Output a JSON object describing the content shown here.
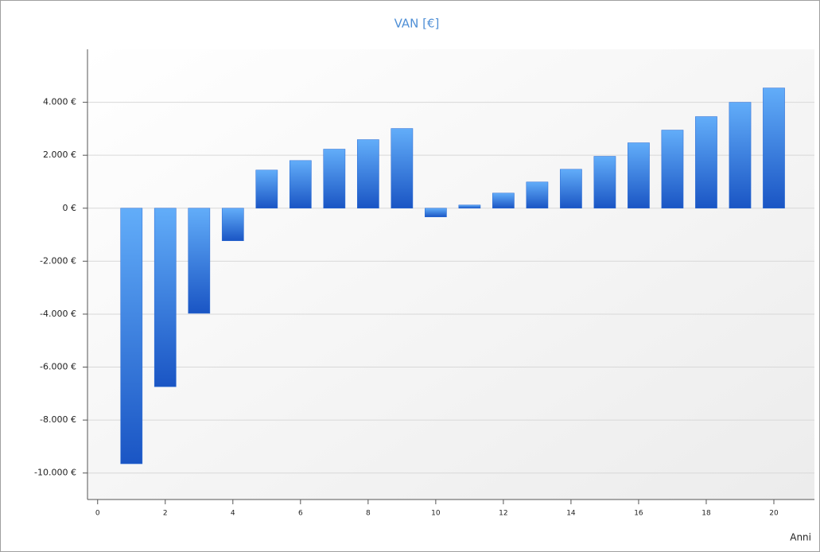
{
  "chart_data": {
    "type": "bar",
    "title": "VAN [€]",
    "x_label": "Anni",
    "x": [
      1,
      2,
      3,
      4,
      5,
      6,
      7,
      8,
      9,
      10,
      11,
      12,
      13,
      14,
      15,
      16,
      17,
      18,
      19,
      20
    ],
    "values": [
      -9650,
      -6740,
      -3970,
      -1230,
      1440,
      1800,
      2230,
      2590,
      3010,
      -330,
      120,
      570,
      990,
      1470,
      1960,
      2470,
      2950,
      3460,
      4000,
      4540
    ],
    "color": "#3f8ce8",
    "xlim": [
      -0.3,
      21.2
    ],
    "xticks": [
      0,
      2,
      4,
      6,
      8,
      10,
      12,
      14,
      16,
      18,
      20
    ],
    "ylim": [
      -11000,
      6000
    ],
    "yticks": [
      {
        "value": -10000,
        "label": "-10.000 €"
      },
      {
        "value": -8000,
        "label": "-8.000 €"
      },
      {
        "value": -6000,
        "label": "-6.000 €"
      },
      {
        "value": -4000,
        "label": "-4.000 €"
      },
      {
        "value": -2000,
        "label": "-2.000 €"
      },
      {
        "value": 0,
        "label": "0 €"
      },
      {
        "value": 2000,
        "label": "2.000 €"
      },
      {
        "value": 4000,
        "label": "4.000 €"
      }
    ],
    "grid": true
  }
}
